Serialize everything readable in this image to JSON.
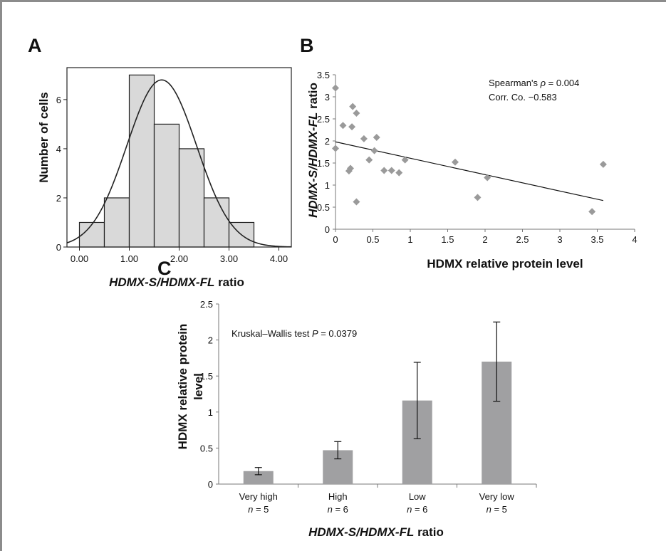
{
  "chart_data": [
    {
      "panel": "A",
      "type": "bar",
      "subtype": "histogram-with-normal-curve",
      "bins": [
        {
          "from": 0.0,
          "to": 0.5,
          "count": 1
        },
        {
          "from": 0.5,
          "to": 1.0,
          "count": 2
        },
        {
          "from": 1.0,
          "to": 1.5,
          "count": 7
        },
        {
          "from": 1.5,
          "to": 2.0,
          "count": 5
        },
        {
          "from": 2.0,
          "to": 2.5,
          "count": 4
        },
        {
          "from": 2.5,
          "to": 3.0,
          "count": 2
        },
        {
          "from": 3.0,
          "to": 3.5,
          "count": 1
        }
      ],
      "normal_curve": {
        "mean": 1.65,
        "sd": 0.7,
        "peak": 6.8
      },
      "xlabel_italic": "HDMX-S/HDMX-FL",
      "xlabel_rest": " ratio",
      "ylabel": "Number of cells",
      "xlim": [
        -0.25,
        4.25
      ],
      "ylim": [
        0,
        7.3
      ],
      "x_ticks": [
        "0.00",
        "1.00",
        "2.00",
        "3.00",
        "4.00"
      ],
      "y_ticks": [
        "0",
        "2",
        "4",
        "6"
      ],
      "colors": {
        "bar_fill": "#d9d9d9",
        "bar_stroke": "#222222",
        "curve": "#222222"
      }
    },
    {
      "panel": "B",
      "type": "scatter",
      "points": [
        [
          0.0,
          3.2
        ],
        [
          0.0,
          1.83
        ],
        [
          0.1,
          2.35
        ],
        [
          0.18,
          1.32
        ],
        [
          0.2,
          1.38
        ],
        [
          0.22,
          2.32
        ],
        [
          0.23,
          2.78
        ],
        [
          0.28,
          2.63
        ],
        [
          0.28,
          0.62
        ],
        [
          0.38,
          2.05
        ],
        [
          0.45,
          1.57
        ],
        [
          0.52,
          1.78
        ],
        [
          0.55,
          2.08
        ],
        [
          0.65,
          1.33
        ],
        [
          0.75,
          1.33
        ],
        [
          0.85,
          1.28
        ],
        [
          0.93,
          1.57
        ],
        [
          1.6,
          1.52
        ],
        [
          1.9,
          0.72
        ],
        [
          2.03,
          1.17
        ],
        [
          3.43,
          0.4
        ],
        [
          3.58,
          1.47
        ]
      ],
      "trendline": {
        "from": [
          0,
          1.98
        ],
        "to": [
          3.58,
          0.65
        ]
      },
      "xlabel": "HDMX relative protein level",
      "ylabel_italic": "HDMX-S/HDMX-FL",
      "ylabel_rest": " ratio",
      "xlim": [
        0,
        4
      ],
      "ylim": [
        0,
        3.5
      ],
      "x_ticks": [
        "0",
        "0.5",
        "1",
        "1.5",
        "2",
        "2.5",
        "3",
        "3.5",
        "4"
      ],
      "y_ticks": [
        "0",
        "0.5",
        "1",
        "1.5",
        "2",
        "2.5",
        "3",
        "3.5"
      ],
      "annotation_line1_prefix": "Spearman's ",
      "annotation_line1_symbol": "ρ",
      "annotation_line1_suffix": " = 0.004",
      "annotation_line2": "Corr. Co. −0.583",
      "colors": {
        "point": "#9a9a9a",
        "trendline": "#111111"
      }
    },
    {
      "panel": "C",
      "type": "bar",
      "categories": [
        {
          "label": "Very high",
          "n_text": " = 5"
        },
        {
          "label": "High",
          "n_text": " = 6"
        },
        {
          "label": "Low",
          "n_text": " = 6"
        },
        {
          "label": "Very low",
          "n_text": " = 5"
        }
      ],
      "n_symbol": "n",
      "values": [
        0.18,
        0.47,
        1.16,
        1.7
      ],
      "error_low": [
        0.13,
        0.35,
        0.63,
        1.15
      ],
      "error_high": [
        0.23,
        0.59,
        1.69,
        2.25
      ],
      "ylabel_line1": "HDMX relative protein",
      "ylabel_line2": "level",
      "xlabel_italic": "HDMX-S/HDMX-FL",
      "xlabel_rest": " ratio",
      "ylim": [
        0,
        2.5
      ],
      "y_ticks": [
        "0",
        "0.5",
        "1",
        "1.5",
        "2",
        "2.5"
      ],
      "annotation_prefix": "Kruskal–Wallis test ",
      "annotation_symbol": "P",
      "annotation_suffix": " = 0.0379",
      "colors": {
        "bar_fill": "#a0a0a2",
        "error": "#111111"
      }
    }
  ],
  "panels": {
    "a_label": "A",
    "b_label": "B",
    "c_label": "C"
  }
}
